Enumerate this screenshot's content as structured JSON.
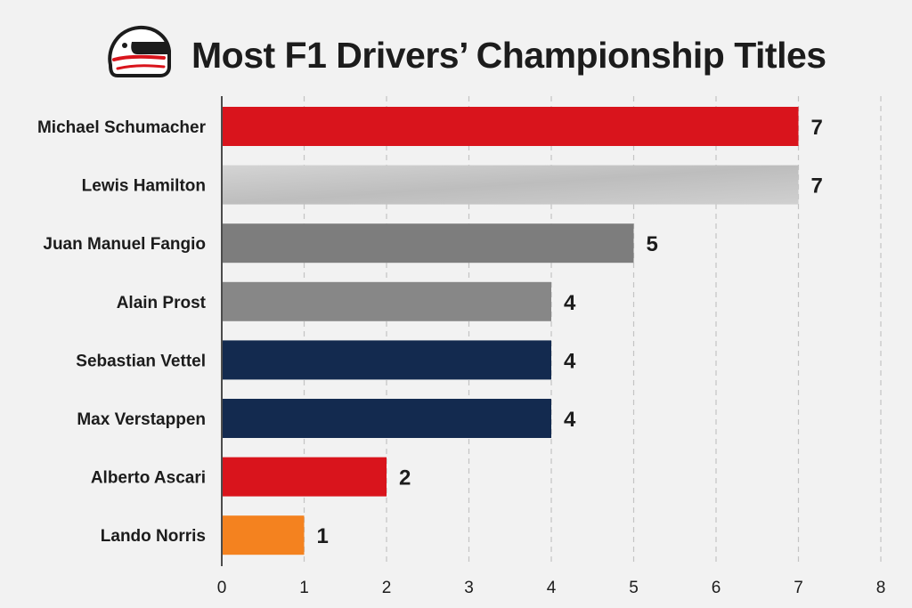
{
  "chart_data": {
    "type": "bar",
    "orientation": "horizontal",
    "title": "Most F1 Drivers’ Championship Titles",
    "title_icon": "racing-helmet-icon",
    "categories": [
      "Michael Schumacher",
      "Lewis Hamilton",
      "Juan Manuel Fangio",
      "Alain Prost",
      "Sebastian Vettel",
      "Max Verstappen",
      "Alberto Ascari",
      "Lando Norris"
    ],
    "values": [
      7,
      7,
      5,
      4,
      4,
      4,
      2,
      1
    ],
    "value_labels": [
      "7",
      "7",
      "5",
      "4",
      "4",
      "4",
      "2",
      "1"
    ],
    "bar_colors": [
      "#d9141c",
      "#c6c6c6",
      "#7d7d7d",
      "#878787",
      "#132a4f",
      "#132a4f",
      "#d9141c",
      "#f4821f"
    ],
    "xlabel": "",
    "ylabel": "",
    "xlim": [
      0,
      8
    ],
    "x_ticks": [
      "0",
      "1",
      "2",
      "3",
      "4",
      "5",
      "6",
      "7",
      "8"
    ],
    "grid": "vertical-dashed",
    "legend": "none"
  }
}
